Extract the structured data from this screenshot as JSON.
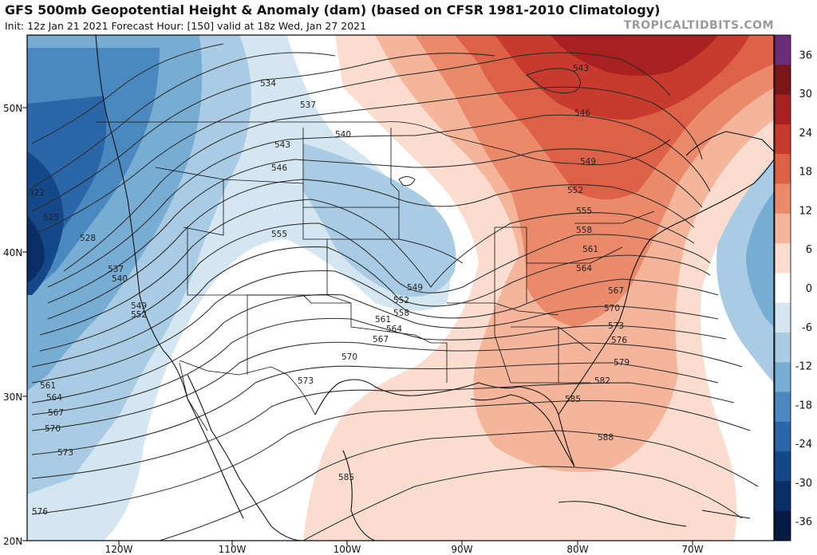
{
  "header": {
    "title": "GFS 500mb Geopotential Height & Anomaly (dam) (based on CFSR 1981-2010 Climatology)",
    "subtitle": "Init: 12z Jan 21 2021   Forecast Hour: [150]   valid at 18z Wed, Jan 27 2021",
    "brand": "TROPICALTIDBITS.COM"
  },
  "axes": {
    "lat_labels": [
      "50N",
      "40N",
      "30N",
      "20N"
    ],
    "lon_labels": [
      "120W",
      "110W",
      "100W",
      "90W",
      "80W",
      "70W"
    ]
  },
  "colorbar": {
    "ticks": [
      "36",
      "30",
      "24",
      "18",
      "12",
      "6",
      "0",
      "-6",
      "-12",
      "-18",
      "-24",
      "-30",
      "-36"
    ],
    "colors": [
      "#6b2c79",
      "#7a1518",
      "#a82020",
      "#c83a2e",
      "#dd6146",
      "#ea8a6a",
      "#f5b59b",
      "#fbddd0",
      "#ffffff",
      "#d3e6f1",
      "#a9cce4",
      "#77acd3",
      "#4a89c0",
      "#2a66a8",
      "#154888",
      "#0a2f66",
      "#061a44"
    ]
  },
  "contours": {
    "values": [
      "522",
      "525",
      "528",
      "534",
      "537",
      "537",
      "540",
      "540",
      "543",
      "543",
      "546",
      "546",
      "549",
      "549",
      "549",
      "552",
      "552",
      "552",
      "555",
      "555",
      "558",
      "558",
      "561",
      "561",
      "561",
      "564",
      "564",
      "564",
      "567",
      "567",
      "567",
      "570",
      "570",
      "570",
      "573",
      "573",
      "573",
      "576",
      "576",
      "579",
      "582",
      "585",
      "585",
      "588"
    ]
  }
}
